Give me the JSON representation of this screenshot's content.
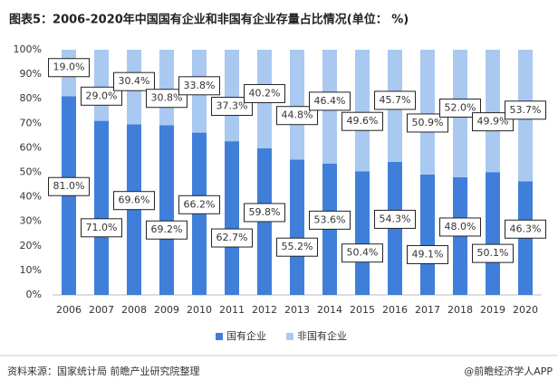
{
  "chart_data": {
    "type": "stacked_bar",
    "title": "图表5：2006-2020年中国国有企业和非国有企业存量占比情况(单位： %)",
    "categories": [
      "2006",
      "2007",
      "2008",
      "2009",
      "2010",
      "2011",
      "2012",
      "2013",
      "2014",
      "2015",
      "2016",
      "2017",
      "2018",
      "2019",
      "2020"
    ],
    "series": [
      {
        "name": "国有企业",
        "color": "#3f7fd9",
        "values": [
          81.0,
          71.0,
          69.6,
          69.2,
          66.2,
          62.7,
          59.8,
          55.2,
          53.6,
          50.4,
          54.3,
          49.1,
          48.0,
          50.1,
          46.3
        ],
        "value_labels": [
          "81.0%",
          "71.0%",
          "69.6%",
          "69.2%",
          "66.2%",
          "62.7%",
          "59.8%",
          "55.2%",
          "53.6%",
          "50.4%",
          "54.3%",
          "49.1%",
          "48.0%",
          "50.1%",
          "46.3%"
        ]
      },
      {
        "name": "非国有企业",
        "color": "#a9c9f1",
        "values": [
          19.0,
          29.0,
          30.4,
          30.8,
          33.8,
          37.3,
          40.2,
          44.8,
          46.4,
          49.6,
          45.7,
          50.9,
          52.0,
          49.9,
          53.7
        ],
        "value_labels": [
          "19.0%",
          "29.0%",
          "30.4%",
          "30.8%",
          "33.8%",
          "37.3%",
          "40.2%",
          "44.8%",
          "46.4%",
          "49.6%",
          "45.7%",
          "50.9%",
          "52.0%",
          "49.9%",
          "53.7%"
        ]
      }
    ],
    "ylim": [
      0,
      100
    ],
    "yticks": [
      {
        "value": 0,
        "label": "0%"
      },
      {
        "value": 10,
        "label": "10%"
      },
      {
        "value": 20,
        "label": "20%"
      },
      {
        "value": 30,
        "label": "30%"
      },
      {
        "value": 40,
        "label": "40%"
      },
      {
        "value": 50,
        "label": "50%"
      },
      {
        "value": 60,
        "label": "60%"
      },
      {
        "value": 70,
        "label": "70%"
      },
      {
        "value": 80,
        "label": "80%"
      },
      {
        "value": 90,
        "label": "90%"
      },
      {
        "value": 100,
        "label": "100%"
      }
    ],
    "grid": false,
    "legend": "bottom",
    "source": "资料来源：国家统计局 前瞻产业研究院整理",
    "credit": "@前瞻经济学人APP"
  }
}
